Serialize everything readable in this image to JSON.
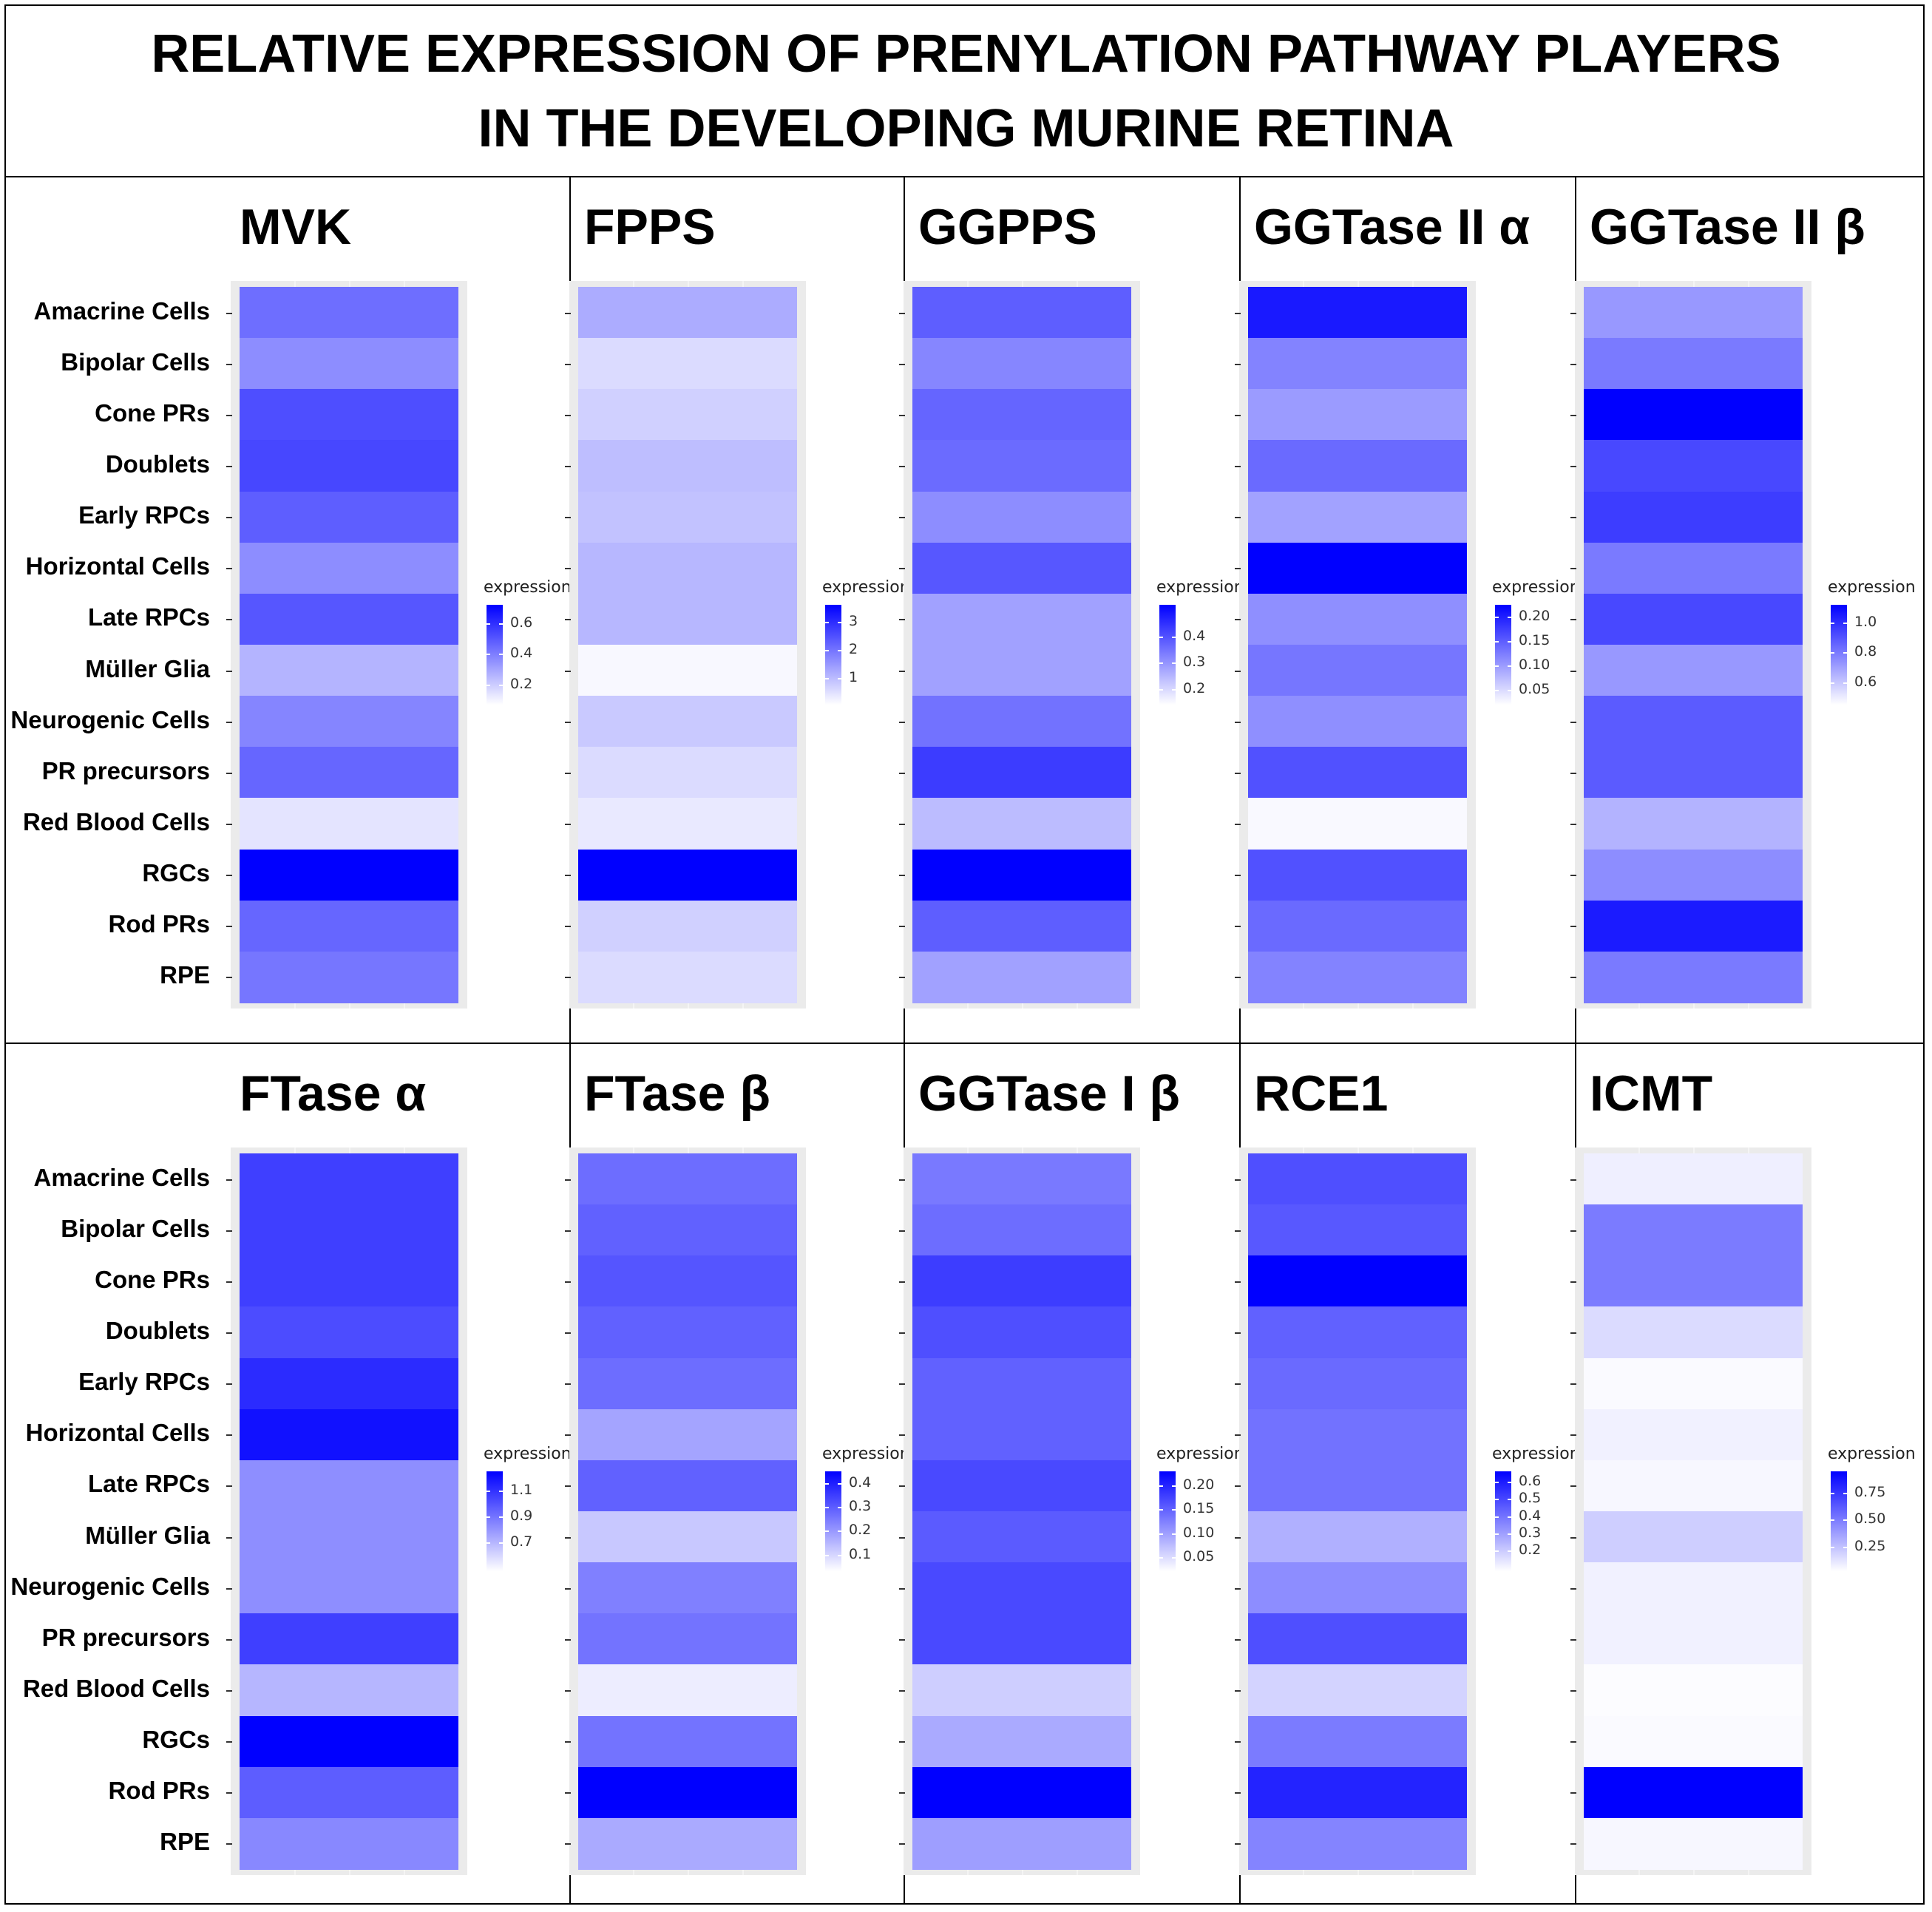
{
  "title": {
    "line1": "RELATIVE EXPRESSION OF PRENYLATION PATHWAY PLAYERS",
    "line2": "IN THE DEVELOPING MURINE RETINA"
  },
  "colors": {
    "low": "#ffffff",
    "high": "#0000ff"
  },
  "chart_data": {
    "type": "heatmap",
    "rows": [
      "Amacrine Cells",
      "Bipolar Cells",
      "Cone PRs",
      "Doublets",
      "Early RPCs",
      "Horizontal Cells",
      "Late RPCs",
      "Müller Glia",
      "Neurogenic Cells",
      "PR precursors",
      "Red Blood Cells",
      "RGCs",
      "Rod PRs",
      "RPE"
    ],
    "legend_title": "expression",
    "panels": [
      {
        "title": "MVK",
        "legend_ticks": [
          "0.6",
          "0.4",
          "0.2"
        ],
        "tick_values": [
          0.6,
          0.4,
          0.2
        ],
        "range": [
          0.07,
          0.72
        ],
        "values": [
          0.44,
          0.36,
          0.52,
          0.54,
          0.48,
          0.36,
          0.5,
          0.26,
          0.38,
          0.46,
          0.14,
          0.72,
          0.46,
          0.42
        ]
      },
      {
        "title": "FPPS",
        "legend_ticks": [
          "3",
          "2",
          "1"
        ],
        "tick_values": [
          3,
          2,
          1
        ],
        "range": [
          0.05,
          3.6
        ],
        "values": [
          1.2,
          0.55,
          0.7,
          0.95,
          0.9,
          1.05,
          1.05,
          0.15,
          0.8,
          0.55,
          0.35,
          3.6,
          0.7,
          0.55
        ]
      },
      {
        "title": "GGPPS",
        "legend_ticks": [
          "0.4",
          "0.3",
          "0.2"
        ],
        "tick_values": [
          0.4,
          0.3,
          0.2
        ],
        "range": [
          0.14,
          0.52
        ],
        "values": [
          0.38,
          0.32,
          0.37,
          0.36,
          0.31,
          0.39,
          0.28,
          0.28,
          0.35,
          0.43,
          0.24,
          0.52,
          0.38,
          0.28
        ]
      },
      {
        "title": "GGTase II α",
        "legend_ticks": [
          "0.20",
          "0.15",
          "0.10",
          "0.05"
        ],
        "tick_values": [
          0.2,
          0.15,
          0.1,
          0.05
        ],
        "range": [
          0.02,
          0.225
        ],
        "values": [
          0.205,
          0.12,
          0.1,
          0.14,
          0.095,
          0.225,
          0.11,
          0.13,
          0.11,
          0.16,
          0.025,
          0.16,
          0.14,
          0.12
        ]
      },
      {
        "title": "GGTase II β",
        "legend_ticks": [
          "1.0",
          "0.8",
          "0.6"
        ],
        "tick_values": [
          1.0,
          0.8,
          0.6
        ],
        "range": [
          0.45,
          1.12
        ],
        "values": [
          0.72,
          0.8,
          1.12,
          0.93,
          0.96,
          0.8,
          0.93,
          0.72,
          0.88,
          0.88,
          0.65,
          0.75,
          1.05,
          0.8
        ]
      },
      {
        "title": "FTase α",
        "legend_ticks": [
          "1.1",
          "0.9",
          "0.7"
        ],
        "tick_values": [
          1.1,
          0.9,
          0.7
        ],
        "range": [
          0.48,
          1.25
        ],
        "values": [
          1.06,
          1.06,
          1.06,
          1.02,
          1.12,
          1.2,
          0.82,
          0.82,
          0.82,
          1.06,
          0.7,
          1.25,
          0.97,
          0.84
        ]
      },
      {
        "title": "FTase β",
        "legend_ticks": [
          "0.4",
          "0.3",
          "0.2",
          "0.1"
        ],
        "tick_values": [
          0.4,
          0.3,
          0.2,
          0.1
        ],
        "range": [
          0.03,
          0.45
        ],
        "values": [
          0.27,
          0.29,
          0.31,
          0.29,
          0.27,
          0.18,
          0.29,
          0.12,
          0.24,
          0.26,
          0.06,
          0.26,
          0.45,
          0.17
        ]
      },
      {
        "title": "GGTase I β",
        "legend_ticks": [
          "0.20",
          "0.15",
          "0.10",
          "0.05"
        ],
        "tick_values": [
          0.2,
          0.15,
          0.1,
          0.05
        ],
        "range": [
          0.02,
          0.23
        ],
        "values": [
          0.13,
          0.14,
          0.18,
          0.165,
          0.15,
          0.15,
          0.17,
          0.155,
          0.17,
          0.17,
          0.06,
          0.09,
          0.23,
          0.1
        ]
      },
      {
        "title": "RCE1",
        "legend_ticks": [
          "0.6",
          "0.5",
          "0.4",
          "0.3",
          "0.2"
        ],
        "tick_values": [
          0.6,
          0.5,
          0.4,
          0.3,
          0.2
        ],
        "range": [
          0.08,
          0.66
        ],
        "values": [
          0.48,
          0.46,
          0.66,
          0.44,
          0.42,
          0.4,
          0.4,
          0.26,
          0.34,
          0.48,
          0.18,
          0.38,
          0.58,
          0.36
        ]
      },
      {
        "title": "ICMT",
        "legend_ticks": [
          "0.75",
          "0.50",
          "0.25"
        ],
        "tick_values": [
          0.75,
          0.5,
          0.25
        ],
        "range": [
          0.02,
          0.95
        ],
        "values": [
          0.08,
          0.5,
          0.5,
          0.15,
          0.04,
          0.07,
          0.05,
          0.2,
          0.07,
          0.07,
          0.03,
          0.04,
          0.95,
          0.05
        ]
      }
    ]
  }
}
